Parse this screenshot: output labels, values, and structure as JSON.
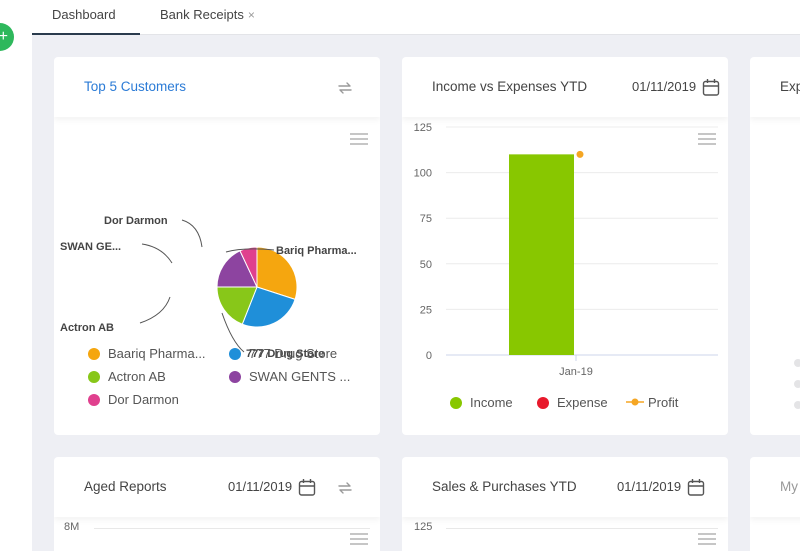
{
  "tabs": [
    {
      "label": "Dashboard"
    },
    {
      "label": "Bank Receipts",
      "close": "×"
    }
  ],
  "fab_label": "+",
  "top_customers": {
    "title": "Top 5 Customers",
    "pie_labels": [
      "Bariq Pharma...",
      "777 Drug Store",
      "Actron AB",
      "SWAN GE...",
      "Dor Darmon"
    ],
    "legend": [
      {
        "label": "Baariq Pharma...",
        "color": "#f5a60f"
      },
      {
        "label": "777 Drug Store",
        "color": "#1f8fd9"
      },
      {
        "label": "Actron AB",
        "color": "#88c719"
      },
      {
        "label": "SWAN GENTS ...",
        "color": "#8d44a0"
      },
      {
        "label": "Dor Darmon",
        "color": "#e0408e"
      }
    ]
  },
  "income_expenses": {
    "title": "Income vs Expenses YTD",
    "date": "01/11/2019",
    "legend": [
      {
        "label": "Income",
        "color": "#88c700"
      },
      {
        "label": "Expense",
        "color": "#e8192c"
      },
      {
        "label": "Profit",
        "color": "#f5a623"
      }
    ]
  },
  "chart_data": {
    "type": "bar",
    "categories": [
      "Jan-19"
    ],
    "series": [
      {
        "name": "Income",
        "values": [
          110
        ]
      },
      {
        "name": "Expense",
        "values": [
          0
        ]
      },
      {
        "name": "Profit",
        "values": [
          110
        ]
      }
    ],
    "yticks": [
      0,
      25,
      50,
      75,
      100,
      125
    ],
    "ylim": [
      0,
      125
    ]
  },
  "exp_card": {
    "title": "Exp"
  },
  "aged_reports": {
    "title": "Aged Reports",
    "date": "01/11/2019",
    "first_tick": "8M"
  },
  "sales_purchases": {
    "title": "Sales & Purchases YTD",
    "date": "01/11/2019",
    "first_tick": "125"
  },
  "my_card": {
    "title": "My"
  }
}
